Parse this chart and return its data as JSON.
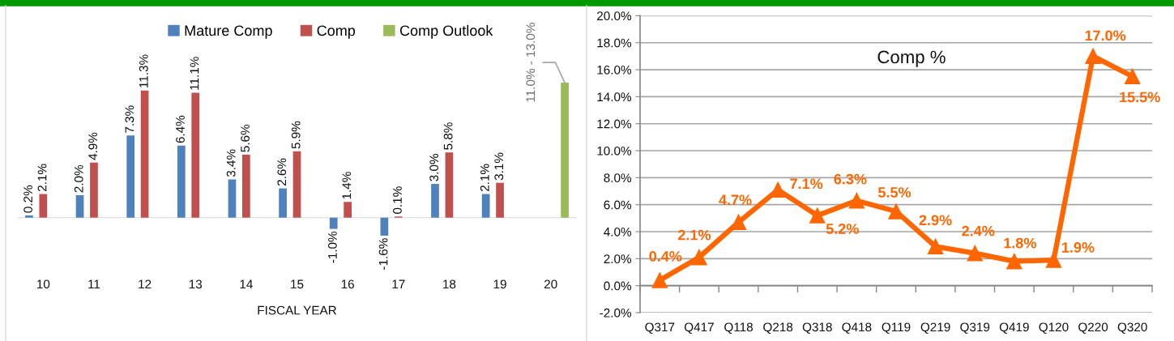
{
  "chart_data": [
    {
      "type": "bar",
      "categories": [
        "10",
        "11",
        "12",
        "13",
        "14",
        "15",
        "16",
        "17",
        "18",
        "19",
        "20"
      ],
      "xlabel": "FISCAL YEAR",
      "legend": "top",
      "tick_labels": "x",
      "series": [
        {
          "name": "Mature Comp",
          "color": "#4f81bd",
          "values": [
            0.2,
            2.0,
            7.3,
            6.4,
            3.4,
            2.6,
            -1.0,
            -1.6,
            3.0,
            2.1,
            null
          ],
          "value_labels": [
            "0.2%",
            "2.0%",
            "7.3%",
            "6.4%",
            "3.4%",
            "2.6%",
            "-1.0%",
            "-1.6%",
            "3.0%",
            "2.1%",
            null
          ]
        },
        {
          "name": "Comp",
          "color": "#c0504d",
          "values": [
            2.1,
            4.9,
            11.3,
            11.1,
            5.6,
            5.9,
            1.4,
            0.1,
            5.8,
            3.1,
            null
          ],
          "value_labels": [
            "2.1%",
            "4.9%",
            "11.3%",
            "11.1%",
            "5.6%",
            "5.9%",
            "1.4%",
            "0.1%",
            "5.8%",
            "3.1%",
            null
          ]
        },
        {
          "name": "Comp Outlook",
          "color": "#9bbb59",
          "values": [
            null,
            null,
            null,
            null,
            null,
            null,
            null,
            null,
            null,
            null,
            12.0
          ]
        }
      ],
      "annotations": [
        "11.0% - 13.0%"
      ]
    },
    {
      "type": "line",
      "title": "Comp %",
      "categories": [
        "Q317",
        "Q417",
        "Q118",
        "Q218",
        "Q318",
        "Q418",
        "Q119",
        "Q219",
        "Q319",
        "Q419",
        "Q120",
        "Q220",
        "Q320"
      ],
      "series": [
        {
          "color": "#ff6600",
          "values": [
            0.4,
            2.1,
            4.7,
            7.1,
            5.2,
            6.3,
            5.5,
            2.9,
            2.4,
            1.8,
            1.9,
            17.0,
            15.5
          ],
          "value_labels": [
            "0.4%",
            "2.1%",
            "4.7%",
            "7.1%",
            "5.2%",
            "6.3%",
            "5.5%",
            "2.9%",
            "2.4%",
            "1.8%",
            "1.9%",
            "17.0%",
            "15.5%"
          ]
        }
      ],
      "ylim": [
        -2,
        20
      ],
      "yticks": [
        {
          "value": -2,
          "label": "-2.0%"
        },
        {
          "value": 0,
          "label": "0.0%"
        },
        {
          "value": 2,
          "label": "2.0%"
        },
        {
          "value": 4,
          "label": "4.0%"
        },
        {
          "value": 6,
          "label": "6.0%"
        },
        {
          "value": 8,
          "label": "8.0%"
        },
        {
          "value": 10,
          "label": "10.0%"
        },
        {
          "value": 12,
          "label": "12.0%"
        },
        {
          "value": 14,
          "label": "14.0%"
        },
        {
          "value": 16,
          "label": "16.0%"
        },
        {
          "value": 18,
          "label": "18.0%"
        },
        {
          "value": 20,
          "label": "20.0%"
        }
      ],
      "grid": "y",
      "marker": "triangle",
      "line_style": "solid"
    }
  ]
}
